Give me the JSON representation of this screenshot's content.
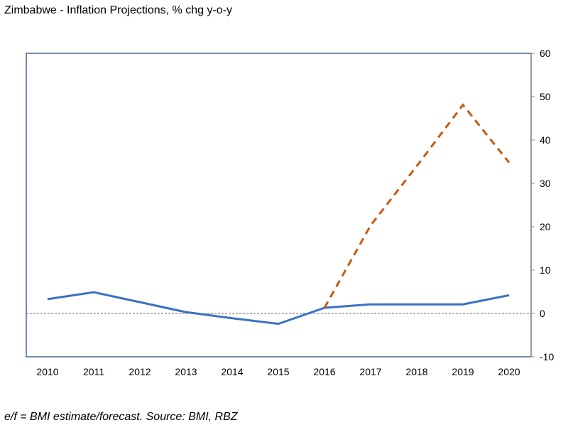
{
  "chart_data": {
    "type": "line",
    "title": "Zimbabwe - Inflation Projections, % chg y-o-y",
    "footnote": "e/f = BMI estimate/forecast. Source: BMI, RBZ",
    "categories": [
      "2010",
      "2011",
      "2012",
      "2013",
      "2014",
      "2015",
      "2016",
      "2017",
      "2018",
      "2019",
      "2020"
    ],
    "y_axis": {
      "position": "right",
      "ylim": [
        -10,
        60
      ],
      "ticks": [
        60,
        50,
        40,
        30,
        20,
        10,
        0,
        -10
      ]
    },
    "reference_line": {
      "y": 0,
      "style": "dashed",
      "color": "#666666"
    },
    "grid": false,
    "legend": "none",
    "series": [
      {
        "values": [
          3.3,
          4.9,
          2.6,
          0.3,
          -1.1,
          -2.4,
          1.3,
          2.1,
          2.1,
          2.1,
          4.2
        ],
        "color": "#3a72c4",
        "style": "solid"
      },
      {
        "values": [
          null,
          null,
          null,
          null,
          null,
          null,
          1.3,
          20.3,
          34.0,
          48.1,
          34.8
        ],
        "color": "#c55a11",
        "style": "dashed"
      }
    ],
    "frame_color": "#1f3d7a"
  }
}
